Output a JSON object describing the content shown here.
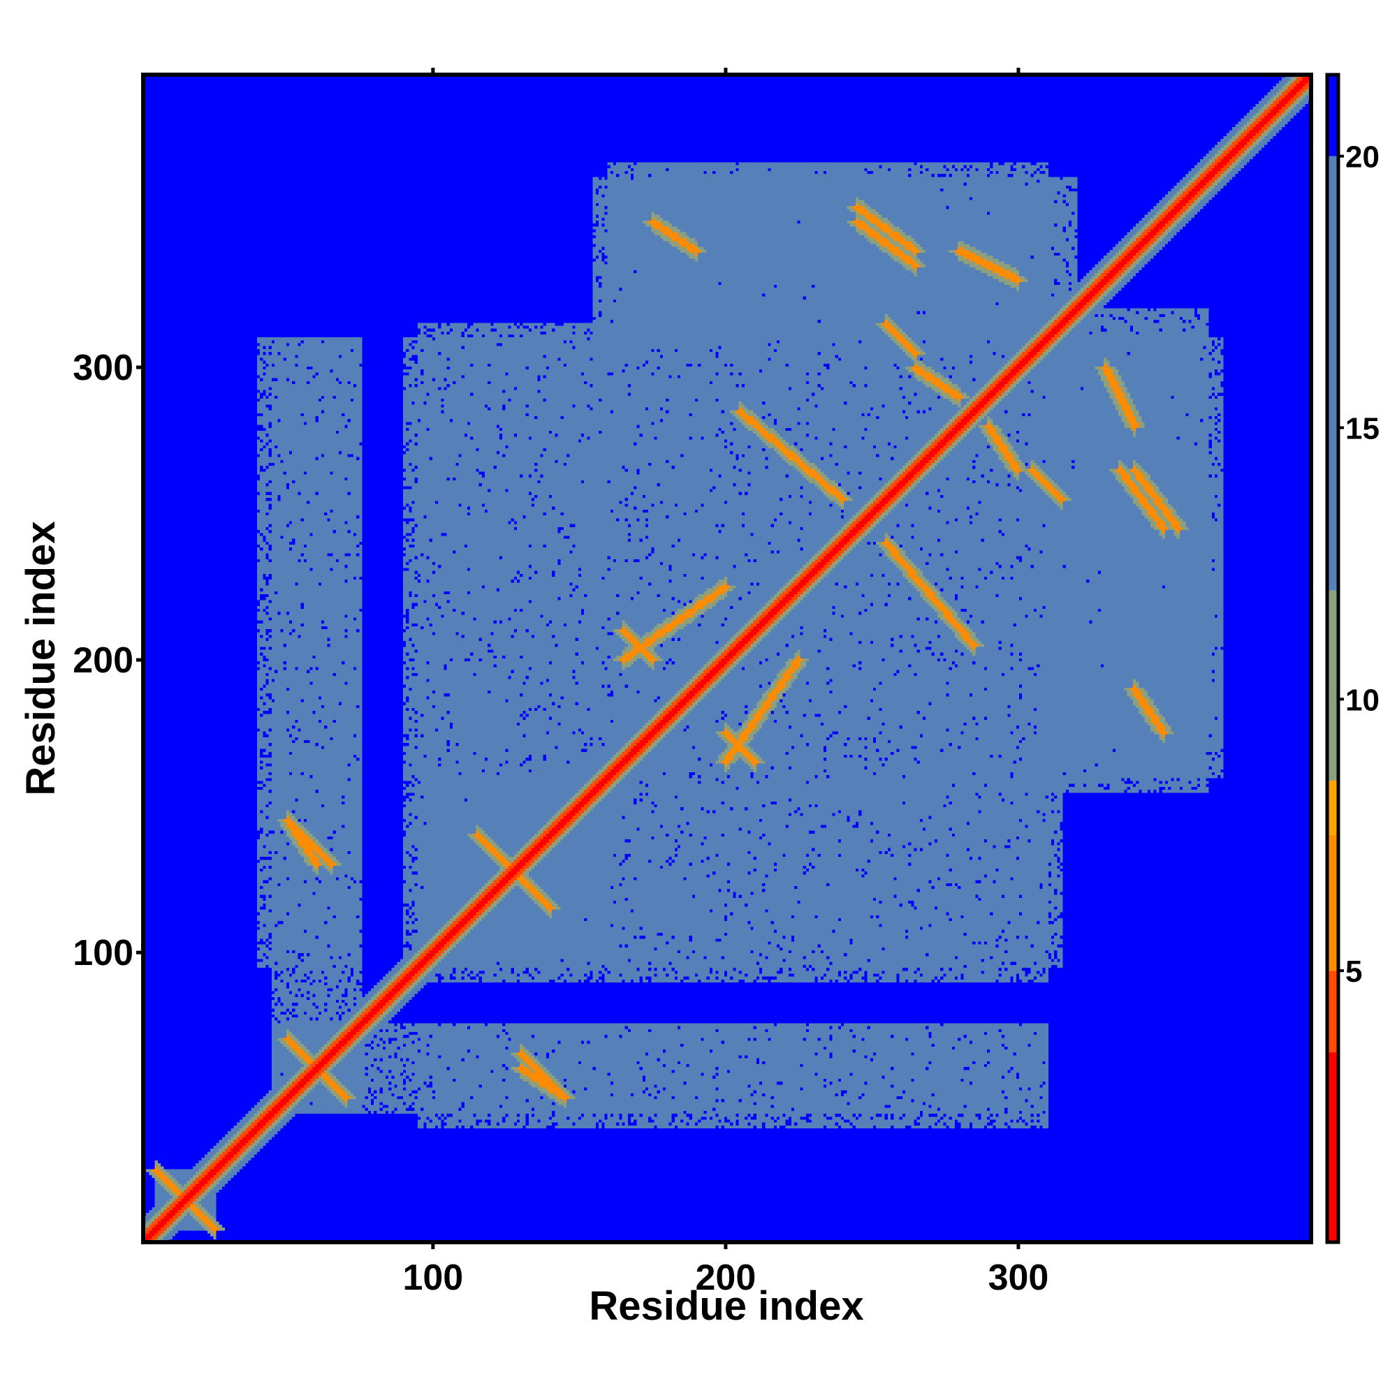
{
  "chart_data": {
    "type": "heatmap",
    "title": "",
    "xlabel": "Residue index",
    "ylabel": "Residue index",
    "n_residues": 400,
    "xlim": [
      1,
      400
    ],
    "ylim": [
      1,
      400
    ],
    "x_ticks": [
      100,
      200,
      300
    ],
    "y_ticks": [
      100,
      200,
      300
    ],
    "colorbar": {
      "ticks": [
        5,
        10,
        15,
        20
      ],
      "range": [
        0,
        21.5
      ],
      "colors": [
        {
          "from": 0,
          "to": 3.5,
          "color": "#ff0000"
        },
        {
          "from": 3.5,
          "to": 5.0,
          "color": "#ff4a00"
        },
        {
          "from": 5.0,
          "to": 7.5,
          "color": "#ff8c00"
        },
        {
          "from": 7.5,
          "to": 8.5,
          "color": "#ffa500"
        },
        {
          "from": 8.5,
          "to": 12.0,
          "color": "#8c9f7e"
        },
        {
          "from": 12.0,
          "to": 20.0,
          "color": "#5580b8"
        },
        {
          "from": 20.0,
          "to": 21.5,
          "color": "#0000ff"
        }
      ]
    },
    "background_value": 21,
    "diagonal": {
      "center": 1.5,
      "near": 4.5,
      "band": 9.0
    },
    "contact_regions": [
      {
        "i": [
          5,
          25
        ],
        "j": [
          5,
          25
        ],
        "value": 14
      },
      {
        "i": [
          45,
          75
        ],
        "j": [
          45,
          75
        ],
        "value": 14
      },
      {
        "i": [
          40,
          75
        ],
        "j": [
          95,
          310
        ],
        "value": 15
      },
      {
        "i": [
          90,
          155
        ],
        "j": [
          95,
          310
        ],
        "value": 15
      },
      {
        "i": [
          95,
          160
        ],
        "j": [
          100,
          160
        ],
        "value": 14
      },
      {
        "i": [
          155,
          315
        ],
        "j": [
          95,
          365
        ],
        "value": 15
      },
      {
        "i": [
          60,
          310
        ],
        "j": [
          45,
          75
        ],
        "value": 15
      },
      {
        "i": [
          170,
          310
        ],
        "j": [
          310,
          370
        ],
        "value": 15
      },
      {
        "i": [
          310,
          365
        ],
        "j": [
          160,
          320
        ],
        "value": 15
      },
      {
        "i": [
          160,
          260
        ],
        "j": [
          330,
          370
        ],
        "value": 15
      }
    ],
    "contact_features": [
      {
        "i": [
          5,
          25
        ],
        "j": [
          25,
          5
        ],
        "value": 6
      },
      {
        "i": [
          50,
          70
        ],
        "j": [
          70,
          50
        ],
        "value": 6
      },
      {
        "i": [
          115,
          140
        ],
        "j": [
          140,
          115
        ],
        "value": 6
      },
      {
        "i": [
          200,
          225
        ],
        "j": [
          165,
          200
        ],
        "value": 6
      },
      {
        "i": [
          255,
          285
        ],
        "j": [
          240,
          205
        ],
        "value": 6
      },
      {
        "i": [
          165,
          175
        ],
        "j": [
          210,
          200
        ],
        "value": 6
      },
      {
        "i": [
          130,
          145
        ],
        "j": [
          60,
          50
        ],
        "value": 6
      },
      {
        "i": [
          245,
          265
        ],
        "j": [
          355,
          340
        ],
        "value": 6
      },
      {
        "i": [
          265,
          280
        ],
        "j": [
          300,
          290
        ],
        "value": 6
      },
      {
        "i": [
          335,
          350
        ],
        "j": [
          265,
          245
        ],
        "value": 6
      },
      {
        "i": [
          340,
          350
        ],
        "j": [
          190,
          175
        ],
        "value": 6
      },
      {
        "i": [
          50,
          65
        ],
        "j": [
          145,
          130
        ],
        "value": 6
      },
      {
        "i": [
          330,
          340
        ],
        "j": [
          300,
          280
        ],
        "value": 6
      },
      {
        "i": [
          305,
          315
        ],
        "j": [
          265,
          255
        ],
        "value": 6
      }
    ]
  }
}
